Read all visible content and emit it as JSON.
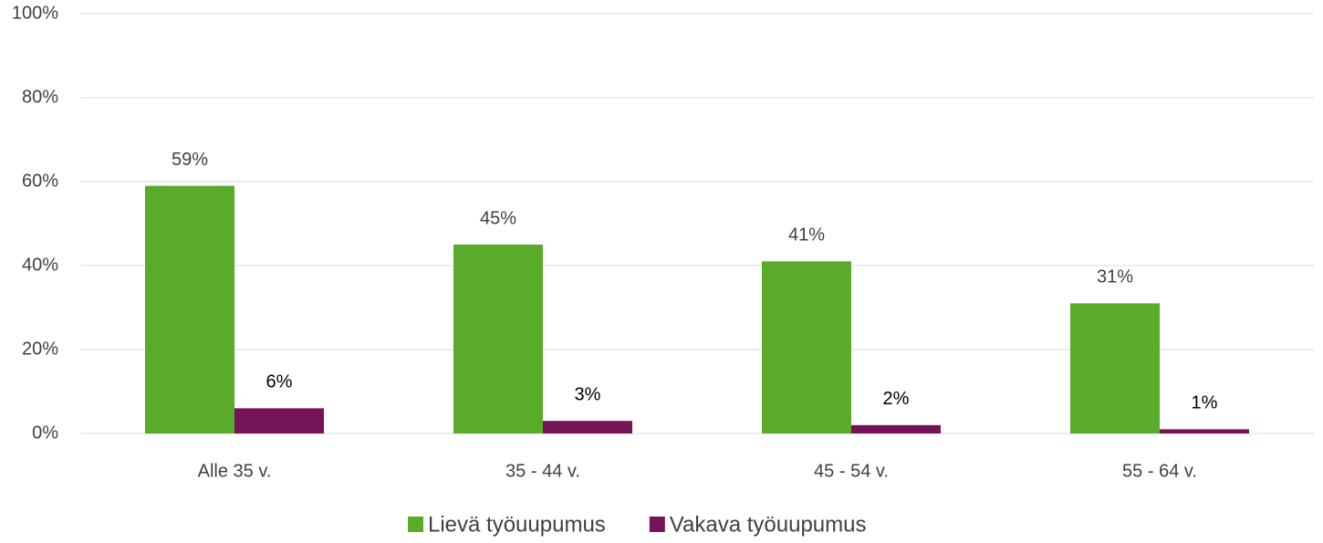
{
  "chart_data": {
    "type": "bar",
    "categories": [
      "Alle 35 v.",
      "35 - 44 v.",
      "45 - 54 v.",
      "55 - 64 v."
    ],
    "series": [
      {
        "name": "Lievä työuupumus",
        "color": "#5aab2a",
        "values": [
          59,
          45,
          41,
          31
        ],
        "value_labels": [
          "59%",
          "45%",
          "41%",
          "31%"
        ]
      },
      {
        "name": "Vakava työuupumus",
        "color": "#76145a",
        "values": [
          6,
          3,
          2,
          1
        ],
        "value_labels": [
          "6%",
          "3%",
          "2%",
          "1%"
        ]
      }
    ],
    "ylim": [
      0,
      100
    ],
    "yticks": [
      {
        "value": 0,
        "label": "0%"
      },
      {
        "value": 20,
        "label": "20%"
      },
      {
        "value": 40,
        "label": "40%"
      },
      {
        "value": 60,
        "label": "60%"
      },
      {
        "value": 80,
        "label": "80%"
      },
      {
        "value": 100,
        "label": "100%"
      }
    ],
    "grid": true,
    "legend": "bottom"
  }
}
